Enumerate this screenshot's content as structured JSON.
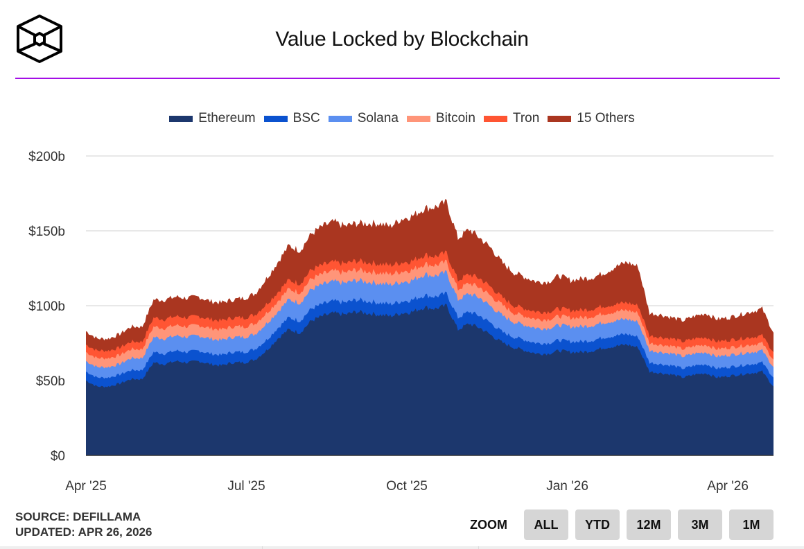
{
  "header": {
    "logo_icon": "cube-logo-icon",
    "title": "Value Locked by Blockchain",
    "rule_color": "#a30fe6"
  },
  "footer": {
    "source": "SOURCE: DEFILLAMA",
    "updated": "UPDATED: APR 26, 2026"
  },
  "zoom": {
    "label": "ZOOM",
    "buttons": [
      "ALL",
      "YTD",
      "12M",
      "3M",
      "1M"
    ]
  },
  "chart_data": {
    "type": "area",
    "stacked": true,
    "title": "Value Locked by Blockchain",
    "xlabel": "",
    "ylabel": "",
    "ylim": [
      0,
      200
    ],
    "y_unit": "$ billions",
    "yticks": [
      "$0",
      "$50b",
      "$100b",
      "$150b",
      "$200b"
    ],
    "ytick_values": [
      0,
      50,
      100,
      150,
      200
    ],
    "xticks": [
      "Apr '25",
      "Jul '25",
      "Oct '25",
      "Jan '26",
      "Apr '26"
    ],
    "xtick_weeks": [
      0,
      13,
      26,
      39,
      52
    ],
    "grid": true,
    "legend_position": "top-center",
    "x_start": "Apr 1, 2025",
    "x_end": "Apr 26, 2026",
    "x_step": "weekly",
    "series": [
      {
        "name": "Ethereum",
        "color": "#1c376d",
        "values": [
          50,
          46,
          46,
          48,
          51,
          51,
          62,
          61,
          63,
          62,
          63,
          61,
          60,
          62,
          62,
          64,
          70,
          78,
          84,
          82,
          90,
          93,
          95,
          94,
          96,
          95,
          94,
          93,
          95,
          96,
          99,
          98,
          100,
          84,
          88,
          85,
          80,
          75,
          72,
          70,
          68,
          68,
          70,
          69,
          69,
          70,
          72,
          73,
          74,
          72,
          56,
          55,
          54,
          52,
          54,
          55,
          52,
          53,
          54,
          55,
          56,
          46
        ]
      },
      {
        "name": "BSC",
        "color": "#0b52cf",
        "values": [
          6,
          6,
          6,
          6,
          6,
          6,
          7,
          7,
          7,
          7,
          7,
          7,
          7,
          7,
          7,
          7,
          7,
          7,
          8,
          8,
          8,
          8,
          8,
          8,
          8,
          8,
          8,
          8,
          8,
          8,
          8,
          8,
          8,
          8,
          8,
          8,
          8,
          7,
          7,
          7,
          7,
          7,
          7,
          7,
          7,
          7,
          7,
          7,
          7,
          7,
          6,
          6,
          6,
          6,
          6,
          6,
          6,
          6,
          6,
          6,
          6,
          6
        ]
      },
      {
        "name": "Solana",
        "color": "#5b8ff0",
        "values": [
          7,
          7,
          7,
          7,
          8,
          8,
          10,
          10,
          10,
          10,
          10,
          10,
          10,
          10,
          10,
          10,
          11,
          11,
          12,
          12,
          13,
          13,
          13,
          13,
          13,
          13,
          13,
          13,
          13,
          13,
          14,
          14,
          14,
          12,
          12,
          12,
          11,
          11,
          10,
          10,
          10,
          10,
          10,
          10,
          10,
          10,
          10,
          10,
          10,
          10,
          8,
          8,
          8,
          8,
          8,
          8,
          8,
          8,
          8,
          8,
          8,
          7
        ]
      },
      {
        "name": "Bitcoin",
        "color": "#ff9579",
        "values": [
          6,
          6,
          6,
          6,
          6,
          6,
          7,
          7,
          7,
          7,
          7,
          7,
          7,
          7,
          7,
          7,
          7,
          7,
          7,
          7,
          7,
          7,
          7,
          7,
          7,
          7,
          7,
          7,
          7,
          7,
          7,
          7,
          7,
          7,
          7,
          7,
          7,
          7,
          6,
          6,
          6,
          6,
          6,
          6,
          6,
          6,
          6,
          6,
          6,
          6,
          5,
          5,
          5,
          5,
          5,
          5,
          5,
          5,
          5,
          5,
          5,
          5
        ]
      },
      {
        "name": "Tron",
        "color": "#ff5533",
        "values": [
          5,
          5,
          5,
          5,
          5,
          5,
          6,
          6,
          6,
          6,
          6,
          6,
          6,
          6,
          6,
          6,
          6,
          6,
          6,
          6,
          6,
          6,
          6,
          6,
          6,
          6,
          6,
          6,
          6,
          6,
          6,
          6,
          6,
          6,
          6,
          6,
          6,
          5,
          5,
          5,
          5,
          5,
          5,
          5,
          5,
          5,
          5,
          5,
          5,
          5,
          5,
          5,
          5,
          5,
          5,
          5,
          5,
          5,
          5,
          5,
          5,
          5
        ]
      },
      {
        "name": "15 Others",
        "color": "#aa3620",
        "values": [
          9,
          8,
          8,
          9,
          10,
          10,
          12,
          13,
          13,
          13,
          13,
          12,
          12,
          12,
          13,
          14,
          17,
          20,
          23,
          22,
          24,
          26,
          27,
          25,
          25,
          26,
          27,
          26,
          29,
          30,
          31,
          33,
          34,
          28,
          30,
          27,
          26,
          23,
          22,
          21,
          20,
          20,
          22,
          20,
          21,
          21,
          22,
          25,
          27,
          26,
          15,
          15,
          14,
          14,
          15,
          16,
          15,
          15,
          16,
          17,
          18,
          13
        ]
      }
    ]
  }
}
